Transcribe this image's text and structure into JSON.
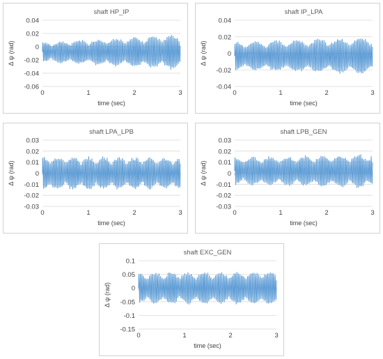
{
  "chart_data": [
    {
      "type": "line",
      "title": "shaft HP_IP",
      "xlabel": "time (sec)",
      "ylabel": "Δ ψ  (rad)",
      "xlim": [
        0,
        3
      ],
      "ylim": [
        -0.06,
        0.04
      ],
      "xticks": [
        0,
        1,
        2,
        3
      ],
      "yticks": [
        0.04,
        0.02,
        0,
        -0.02,
        -0.04,
        -0.06
      ],
      "ytick_labels": [
        "0.04",
        "0.02",
        "0",
        "-0.02",
        "-0.04",
        "-0.06"
      ],
      "grid": "horizontal",
      "series": [
        {
          "color": "#5b9bd5",
          "offset": -0.008,
          "amp_start": 0.016,
          "amp_end": 0.028,
          "freq": 30,
          "beat": 2.5
        }
      ]
    },
    {
      "type": "line",
      "title": "shaft IP_LPA",
      "xlabel": "time (sec)",
      "ylabel": "Δ ψ  (rad)",
      "xlim": [
        0,
        3
      ],
      "ylim": [
        -0.04,
        0.04
      ],
      "xticks": [
        0,
        1,
        2,
        3
      ],
      "yticks": [
        0.04,
        0.02,
        0,
        -0.02,
        -0.04
      ],
      "ytick_labels": [
        "0.04",
        "0.02",
        "0",
        "-0.02",
        "-0.04"
      ],
      "grid": "horizontal",
      "series": [
        {
          "color": "#5b9bd5",
          "offset": -0.003,
          "amp_start": 0.018,
          "amp_end": 0.024,
          "freq": 30,
          "beat": 2.2
        }
      ]
    },
    {
      "type": "line",
      "title": "shaft LPA_LPB",
      "xlabel": "time (sec)",
      "ylabel": "Δ ψ  (rad)",
      "xlim": [
        0,
        3
      ],
      "ylim": [
        -0.03,
        0.03
      ],
      "xticks": [
        0,
        1,
        2,
        3
      ],
      "yticks": [
        0.03,
        0.02,
        0.01,
        0,
        -0.01,
        -0.02,
        -0.03
      ],
      "ytick_labels": [
        "0.03",
        "0.02",
        "0.01",
        "0",
        "-0.01",
        "-0.02",
        "-0.03"
      ],
      "grid": "horizontal",
      "series": [
        {
          "color": "#5b9bd5",
          "offset": 0.0,
          "amp_start": 0.016,
          "amp_end": 0.015,
          "freq": 30,
          "beat": 3.0
        }
      ]
    },
    {
      "type": "line",
      "title": "shaft LPB_GEN",
      "xlabel": "time (sec)",
      "ylabel": "Δ ψ  (rad)",
      "xlim": [
        0,
        3
      ],
      "ylim": [
        -0.03,
        0.03
      ],
      "xticks": [
        0,
        1,
        2,
        3
      ],
      "yticks": [
        0.03,
        0.02,
        0.01,
        0,
        -0.01,
        -0.02,
        -0.03
      ],
      "ytick_labels": [
        "0.03",
        "0.02",
        "0.01",
        "0",
        "-0.01",
        "-0.02",
        "-0.03"
      ],
      "grid": "horizontal",
      "series": [
        {
          "color": "#5b9bd5",
          "offset": 0.002,
          "amp_start": 0.013,
          "amp_end": 0.016,
          "freq": 30,
          "beat": 2.6
        }
      ]
    },
    {
      "type": "line",
      "title": "shaft EXC_GEN",
      "xlabel": "time (sec)",
      "ylabel": "Δ ψ  (rad)",
      "xlim": [
        0,
        3
      ],
      "ylim": [
        -0.15,
        0.1
      ],
      "xticks": [
        0,
        1,
        2,
        3
      ],
      "yticks": [
        0.1,
        0.05,
        0,
        -0.05,
        -0.1,
        -0.15
      ],
      "ytick_labels": [
        "0.1",
        "0.05",
        "0",
        "-0.05",
        "-0.1",
        "-0.15"
      ],
      "grid": "horizontal",
      "series": [
        {
          "color": "#5b9bd5",
          "offset": 0.0,
          "amp_start": 0.06,
          "amp_end": 0.065,
          "freq": 30,
          "beat": 2.8
        }
      ]
    }
  ]
}
